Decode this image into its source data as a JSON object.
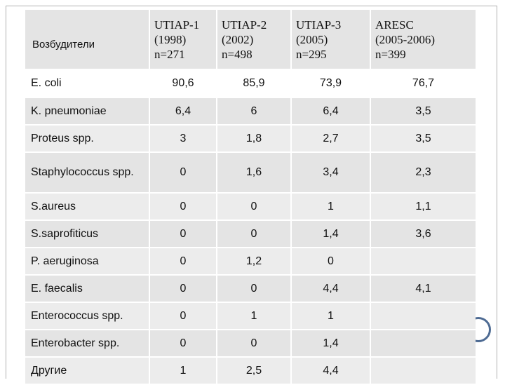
{
  "table": {
    "header": {
      "pathogens_label": "Возбудители",
      "studies": [
        {
          "line1": "UTIAP-1",
          "line2": "(1998)",
          "line3": "n=271"
        },
        {
          "line1": "UTIAP-2",
          "line2": "(2002)",
          "line3": "n=498"
        },
        {
          "line1": "UTIAP-3",
          "line2": "(2005)",
          "line3": "n=295"
        },
        {
          "line1": "ARESC",
          "line2": "(2005-2006)",
          "line3": "n=399"
        }
      ]
    },
    "rows": [
      {
        "name": "E. coli",
        "values": [
          "90,6",
          "85,9",
          "73,9",
          "76,7"
        ]
      },
      {
        "name": "K. pneumoniae",
        "values": [
          "6,4",
          "6",
          "6,4",
          "3,5"
        ]
      },
      {
        "name": "Proteus spp.",
        "values": [
          "3",
          "1,8",
          "2,7",
          "3,5"
        ]
      },
      {
        "name": "Staphylococcus spp.",
        "values": [
          "0",
          "1,6",
          "3,4",
          "2,3"
        ]
      },
      {
        "name": "S.aureus",
        "values": [
          "0",
          "0",
          "1",
          "1,1"
        ]
      },
      {
        "name": "S.saprofiticus",
        "values": [
          "0",
          "0",
          "1,4",
          "3,6"
        ]
      },
      {
        "name": "P. aeruginosa",
        "values": [
          "0",
          "1,2",
          "0",
          ""
        ]
      },
      {
        "name": "E. faecalis",
        "values": [
          "0",
          "0",
          "4,4",
          "4,1"
        ]
      },
      {
        "name": "Enterococcus spp.",
        "values": [
          "0",
          "1",
          "1",
          ""
        ]
      },
      {
        "name": "Enterobacter spp.",
        "values": [
          "0",
          "0",
          "1,4",
          ""
        ]
      },
      {
        "name": "Другие",
        "values": [
          "1",
          "2,5",
          "4,4",
          ""
        ]
      }
    ]
  }
}
